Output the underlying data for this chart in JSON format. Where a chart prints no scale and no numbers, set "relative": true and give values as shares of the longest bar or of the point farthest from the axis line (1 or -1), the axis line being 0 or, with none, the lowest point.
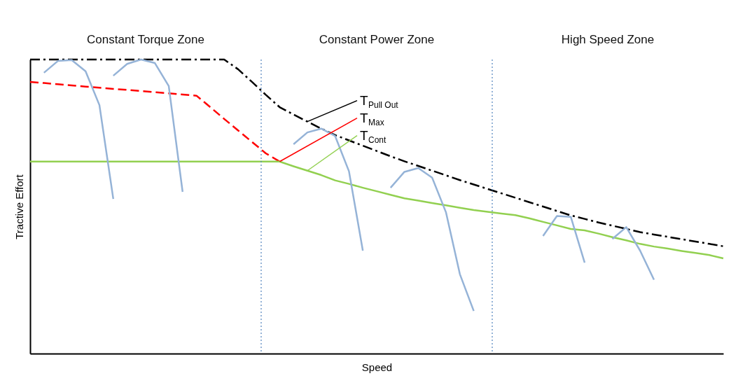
{
  "chart_data": {
    "type": "line",
    "relative": true,
    "xlabel": "Speed",
    "ylabel": "Tractive Effort",
    "grid": false,
    "marker": "none",
    "categories": [
      null,
      null,
      null,
      null,
      null,
      null,
      null,
      null,
      null,
      null,
      null,
      null,
      null,
      null,
      null,
      null,
      null,
      null,
      null,
      null,
      null,
      null,
      null,
      null,
      null,
      null,
      null,
      null,
      null,
      null,
      null,
      null,
      null,
      null,
      null,
      null,
      null,
      null,
      null,
      null,
      null,
      null,
      null,
      null,
      null,
      null,
      null,
      null,
      null,
      null,
      null
    ],
    "series": [
      {
        "name": "T$_{Pull Out}$",
        "color": "#000000",
        "line_style": "dashdot",
        "values": [
          1.0,
          1.0,
          1.0,
          1.0,
          1.0,
          1.0,
          1.0,
          1.0,
          1.0,
          1.0,
          1.0,
          1.0,
          1.0,
          1.0,
          1.0,
          0.967,
          0.924,
          0.88,
          0.838,
          0.813,
          0.789,
          0.765,
          0.743,
          0.725,
          0.707,
          0.689,
          0.671,
          0.654,
          0.638,
          0.622,
          0.606,
          0.59,
          0.575,
          0.56,
          0.545,
          0.53,
          0.515,
          0.5,
          0.485,
          0.47,
          0.458,
          0.446,
          0.435,
          0.424,
          0.413,
          0.405,
          0.397,
          0.389,
          0.381,
          0.373,
          0.365
        ]
      },
      {
        "name": "T$_{Max}$",
        "color": "#ff0000",
        "line_style": "dashed",
        "values": [
          0.924,
          0.92,
          0.916,
          0.912,
          0.908,
          0.904,
          0.9,
          0.897,
          0.893,
          0.889,
          0.885,
          0.881,
          0.877,
          0.838,
          0.798,
          0.759,
          0.72,
          0.681,
          0.653,
          null,
          null,
          null,
          null,
          null,
          null,
          null,
          null,
          null,
          null,
          null,
          null,
          null,
          null,
          null,
          null,
          null,
          null,
          null,
          null,
          null,
          null,
          null,
          null,
          null,
          null,
          null,
          null,
          null,
          null,
          null,
          null
        ]
      },
      {
        "name": "T$_{Cont}$",
        "color": "#92d050",
        "line_style": "solid",
        "values": [
          0.653,
          0.653,
          0.653,
          0.653,
          0.653,
          0.653,
          0.653,
          0.653,
          0.653,
          0.653,
          0.653,
          0.653,
          0.653,
          0.653,
          0.653,
          0.653,
          0.653,
          0.653,
          0.653,
          0.637,
          0.622,
          0.607,
          0.589,
          0.577,
          0.564,
          0.552,
          0.54,
          0.528,
          0.52,
          0.512,
          0.504,
          0.496,
          0.488,
          0.482,
          0.476,
          0.471,
          0.46,
          0.448,
          0.436,
          0.424,
          0.419,
          0.408,
          0.396,
          0.385,
          0.373,
          0.364,
          0.357,
          0.349,
          0.342,
          0.335,
          0.324
        ]
      },
      {
        "color": "#95b3d7",
        "line_style": "solid",
        "values": [
          null,
          0.955,
          0.995,
          0.998,
          0.96,
          0.845,
          0.526,
          null,
          null,
          null,
          null,
          null,
          null,
          null,
          null,
          null,
          null,
          null,
          null,
          null,
          null,
          null,
          null,
          null,
          null,
          null,
          null,
          null,
          null,
          null,
          null,
          null,
          null,
          null,
          null,
          null,
          null,
          null,
          null,
          null,
          null,
          null,
          null,
          null,
          null,
          null,
          null,
          null,
          null,
          null,
          null
        ]
      },
      {
        "color": "#95b3d7",
        "line_style": "solid",
        "values": [
          null,
          null,
          null,
          null,
          null,
          null,
          0.945,
          0.985,
          1.0,
          0.988,
          0.91,
          0.55,
          null,
          null,
          null,
          null,
          null,
          null,
          null,
          null,
          null,
          null,
          null,
          null,
          null,
          null,
          null,
          null,
          null,
          null,
          null,
          null,
          null,
          null,
          null,
          null,
          null,
          null,
          null,
          null,
          null,
          null,
          null,
          null,
          null,
          null,
          null,
          null,
          null,
          null,
          null
        ]
      },
      {
        "color": "#95b3d7",
        "line_style": "solid",
        "values": [
          null,
          null,
          null,
          null,
          null,
          null,
          null,
          null,
          null,
          null,
          null,
          null,
          null,
          null,
          null,
          null,
          null,
          null,
          null,
          0.712,
          0.752,
          0.765,
          0.74,
          0.62,
          0.35,
          null,
          null,
          null,
          null,
          null,
          null,
          null,
          null,
          null,
          null,
          null,
          null,
          null,
          null,
          null,
          null,
          null,
          null,
          null,
          null,
          null,
          null,
          null,
          null,
          null,
          null
        ]
      },
      {
        "color": "#95b3d7",
        "line_style": "solid",
        "values": [
          null,
          null,
          null,
          null,
          null,
          null,
          null,
          null,
          null,
          null,
          null,
          null,
          null,
          null,
          null,
          null,
          null,
          null,
          null,
          null,
          null,
          null,
          null,
          null,
          null,
          null,
          0.564,
          0.618,
          0.631,
          0.598,
          0.48,
          0.27,
          0.145,
          null,
          null,
          null,
          null,
          null,
          null,
          null,
          null,
          null,
          null,
          null,
          null,
          null,
          null,
          null,
          null,
          null,
          null
        ]
      },
      {
        "color": "#95b3d7",
        "line_style": "solid",
        "values": [
          null,
          null,
          null,
          null,
          null,
          null,
          null,
          null,
          null,
          null,
          null,
          null,
          null,
          null,
          null,
          null,
          null,
          null,
          null,
          null,
          null,
          null,
          null,
          null,
          null,
          null,
          null,
          null,
          null,
          null,
          null,
          null,
          null,
          null,
          null,
          null,
          null,
          0.4,
          0.468,
          0.465,
          0.309,
          null,
          null,
          null,
          null,
          null,
          null,
          null,
          null,
          null,
          null
        ]
      },
      {
        "color": "#95b3d7",
        "line_style": "solid",
        "values": [
          null,
          null,
          null,
          null,
          null,
          null,
          null,
          null,
          null,
          null,
          null,
          null,
          null,
          null,
          null,
          null,
          null,
          null,
          null,
          null,
          null,
          null,
          null,
          null,
          null,
          null,
          null,
          null,
          null,
          null,
          null,
          null,
          null,
          null,
          null,
          null,
          null,
          null,
          null,
          null,
          null,
          null,
          0.39,
          0.43,
          0.35,
          0.251,
          null,
          null,
          null,
          null,
          null
        ]
      }
    ],
    "annotations": [
      "Constant Torque Zone",
      "Constant Power Zone",
      "High Speed Zone"
    ]
  }
}
